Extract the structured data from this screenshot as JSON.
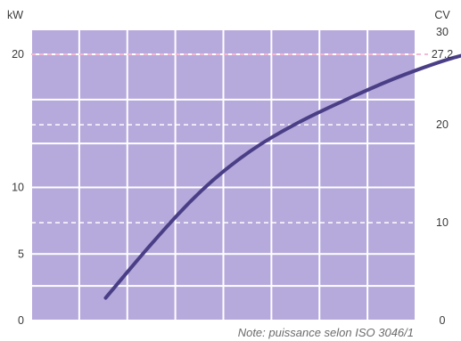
{
  "chart_data": {
    "type": "line",
    "left_axis": {
      "unit": "kW",
      "ticks": [
        0,
        5,
        10,
        20
      ],
      "range": [
        0,
        20
      ]
    },
    "right_axis": {
      "unit": "CV",
      "ticks": [
        0,
        10,
        20,
        27.2
      ],
      "top_label": "30",
      "range": [
        0,
        27.2
      ]
    },
    "series": [
      {
        "color": "#4a3e86",
        "values": [
          [
            0,
            1.7
          ],
          [
            1,
            6.0
          ],
          [
            2,
            9.9
          ],
          [
            3,
            12.8
          ],
          [
            4,
            14.9
          ],
          [
            5,
            16.6
          ],
          [
            6,
            18.2
          ],
          [
            7,
            19.5
          ],
          [
            7.5,
            20.0
          ]
        ]
      }
    ],
    "x_gridlines": 8,
    "grid": true,
    "note": "Note: puissance selon ISO 3046/1"
  },
  "colors": {
    "plot_background": "#b6a9dc",
    "grid": "#ffffff",
    "line": "#4a3e86",
    "right_guide": "#f0a2c8"
  }
}
